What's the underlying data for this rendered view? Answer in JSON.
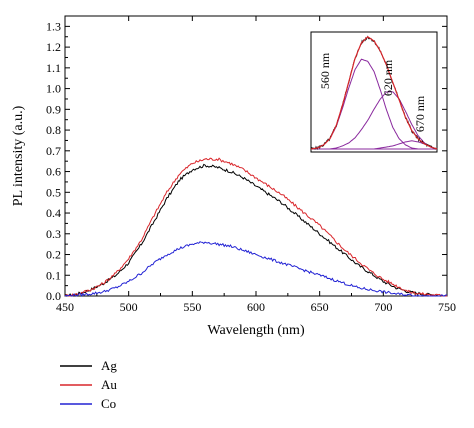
{
  "chart_data": {
    "type": "line",
    "xlabel": "Wavelength (nm)",
    "ylabel": "PL intensity (a.u.)",
    "xlim": [
      450,
      750
    ],
    "ylim": [
      0,
      1.35
    ],
    "x_ticks": [
      "450",
      "500",
      "550",
      "600",
      "650",
      "700",
      "750"
    ],
    "y_ticks": [
      "0.0",
      "0.1",
      "0.2",
      "0.3",
      "0.4",
      "0.5",
      "0.6",
      "0.7",
      "0.8",
      "0.9",
      "1.0",
      "1.1",
      "1.2",
      "1.3"
    ],
    "grid": false,
    "legend_position": "below-left",
    "x": [
      450,
      460,
      470,
      480,
      490,
      500,
      510,
      520,
      530,
      540,
      550,
      560,
      570,
      580,
      590,
      600,
      610,
      620,
      630,
      640,
      650,
      660,
      670,
      680,
      690,
      700,
      710,
      720,
      730,
      740,
      750
    ],
    "series": [
      {
        "name": "Ag",
        "color": "#000000",
        "values": [
          0.0,
          0.01,
          0.03,
          0.06,
          0.1,
          0.16,
          0.25,
          0.36,
          0.47,
          0.56,
          0.61,
          0.63,
          0.62,
          0.6,
          0.57,
          0.53,
          0.49,
          0.45,
          0.4,
          0.35,
          0.3,
          0.25,
          0.2,
          0.15,
          0.11,
          0.07,
          0.04,
          0.02,
          0.01,
          0.005,
          0.0
        ]
      },
      {
        "name": "Au",
        "color": "#d9262b",
        "values": [
          0.0,
          0.01,
          0.03,
          0.06,
          0.11,
          0.18,
          0.27,
          0.39,
          0.5,
          0.59,
          0.64,
          0.66,
          0.66,
          0.64,
          0.61,
          0.57,
          0.53,
          0.49,
          0.44,
          0.39,
          0.34,
          0.28,
          0.22,
          0.17,
          0.12,
          0.08,
          0.05,
          0.02,
          0.01,
          0.005,
          0.0
        ]
      },
      {
        "name": "Co",
        "color": "#2222d4",
        "values": [
          0.0,
          0.005,
          0.01,
          0.02,
          0.04,
          0.07,
          0.11,
          0.16,
          0.2,
          0.23,
          0.25,
          0.26,
          0.25,
          0.24,
          0.22,
          0.2,
          0.18,
          0.16,
          0.14,
          0.12,
          0.1,
          0.08,
          0.06,
          0.04,
          0.03,
          0.02,
          0.01,
          0.005,
          0.0,
          0.0,
          0.0
        ]
      }
    ],
    "inset": {
      "peak_labels": [
        "560 nm",
        "620 nm",
        "670 nm"
      ],
      "envelope_color": "#d9262b",
      "component_color": "#8a2a9e",
      "data_color": "#000000",
      "x": [
        0.0,
        0.05,
        0.1,
        0.15,
        0.2,
        0.25,
        0.3,
        0.35,
        0.4,
        0.45,
        0.5,
        0.55,
        0.6,
        0.65,
        0.7,
        0.75,
        0.8,
        0.85,
        0.9,
        0.95,
        1.0
      ],
      "components": [
        [
          0.0,
          0.01,
          0.04,
          0.1,
          0.22,
          0.4,
          0.6,
          0.78,
          0.88,
          0.86,
          0.76,
          0.58,
          0.38,
          0.21,
          0.1,
          0.04,
          0.01,
          0.0,
          0.0,
          0.0,
          0.0
        ],
        [
          0.0,
          0.0,
          0.0,
          0.0,
          0.01,
          0.03,
          0.06,
          0.11,
          0.19,
          0.28,
          0.39,
          0.49,
          0.56,
          0.56,
          0.49,
          0.37,
          0.24,
          0.13,
          0.06,
          0.02,
          0.0
        ],
        [
          0.0,
          0.0,
          0.0,
          0.0,
          0.0,
          0.0,
          0.0,
          0.0,
          0.0,
          0.0,
          0.0,
          0.01,
          0.02,
          0.03,
          0.05,
          0.07,
          0.08,
          0.07,
          0.05,
          0.02,
          0.0
        ]
      ],
      "envelope": [
        0.0,
        0.01,
        0.04,
        0.1,
        0.23,
        0.43,
        0.66,
        0.89,
        1.04,
        1.1,
        1.06,
        0.96,
        0.82,
        0.65,
        0.48,
        0.31,
        0.18,
        0.1,
        0.05,
        0.02,
        0.0
      ]
    }
  }
}
